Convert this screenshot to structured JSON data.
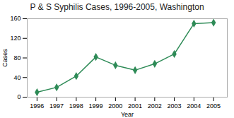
{
  "chart_data": {
    "type": "line",
    "title": "P & S Syphilis Cases, 1996-2005, Washington",
    "xlabel": "Year",
    "ylabel": "Cases",
    "x": [
      1996,
      1997,
      1998,
      1999,
      2000,
      2001,
      2002,
      2003,
      2004,
      2005
    ],
    "values": [
      10,
      20,
      43,
      82,
      65,
      55,
      68,
      88,
      150,
      152
    ],
    "color": "#2e8b57",
    "marker": "diamond",
    "xlim": [
      1995.5,
      2005.7
    ],
    "xticks": [
      1996,
      1997,
      1998,
      1999,
      2000,
      2001,
      2002,
      2003,
      2004,
      2005
    ],
    "ylim": [
      0,
      160
    ],
    "yticks": [
      0,
      40,
      80,
      120,
      160
    ],
    "grid": false
  }
}
